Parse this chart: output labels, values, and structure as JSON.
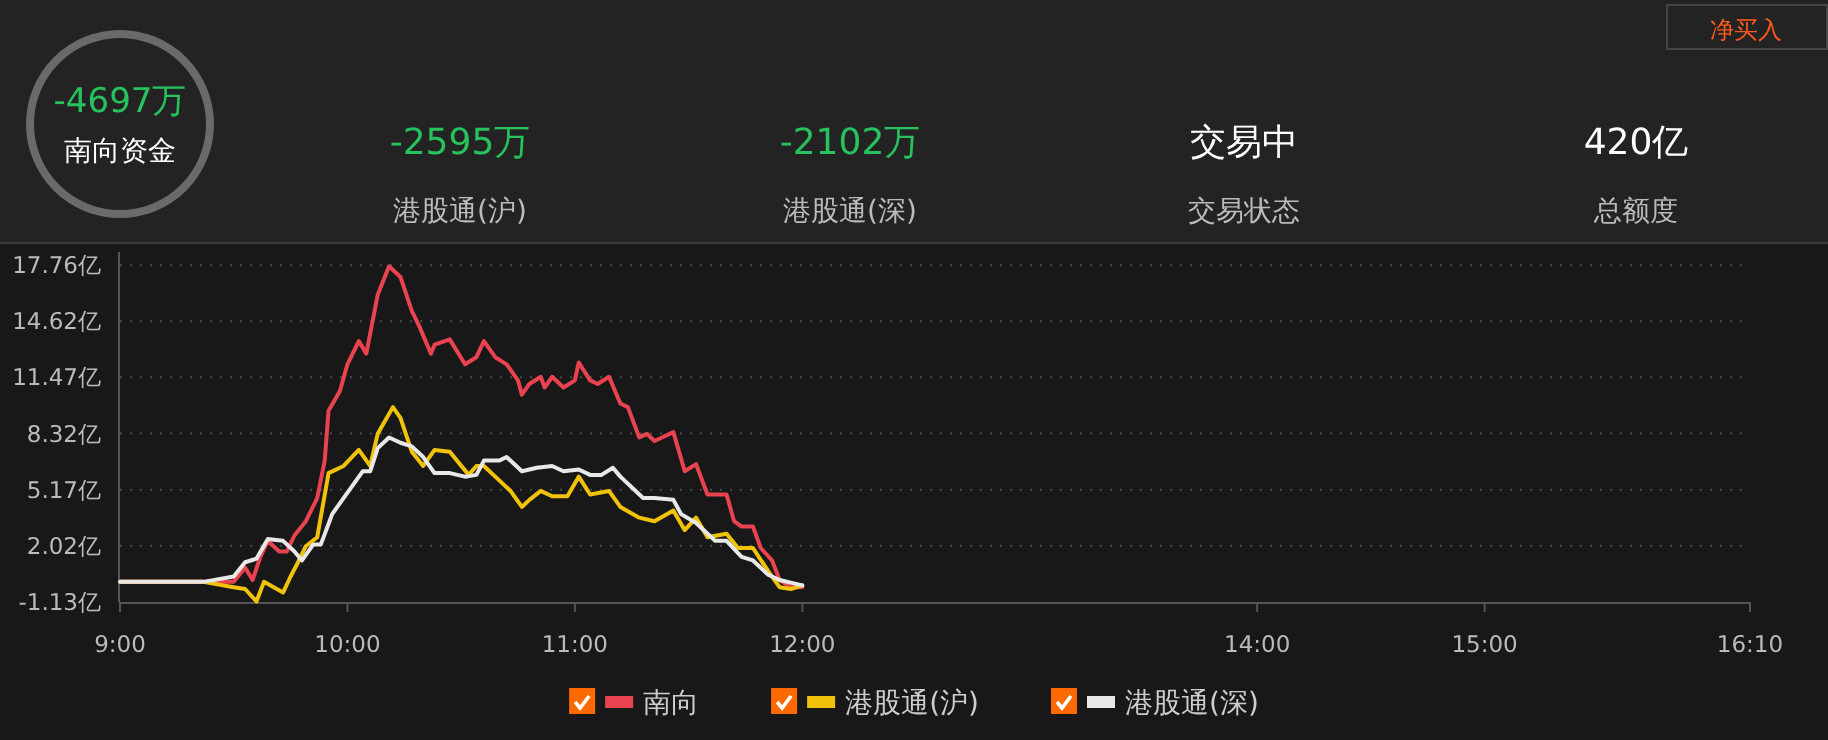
{
  "chart_data": {
    "type": "line",
    "title": "-4697万",
    "subtitle": "南向资金",
    "annotations": [
      "-2595万",
      "港股通(沪)",
      "-2102万",
      "港股通(深)",
      "交易中",
      "交易状态",
      "420亿",
      "总额度",
      "净买入"
    ],
    "xlim": [
      9,
      16.1667
    ],
    "xticks": [
      {
        "value": 9,
        "label": "9:00"
      },
      {
        "value": 10,
        "label": "10:00"
      },
      {
        "value": 11,
        "label": "11:00"
      },
      {
        "value": 12,
        "label": "12:00"
      },
      {
        "value": 14,
        "label": "14:00"
      },
      {
        "value": 15,
        "label": "15:00"
      },
      {
        "value": 16.1667,
        "label": "16:10"
      }
    ],
    "ylim": [
      -1.13,
      18.5
    ],
    "yticks": [
      {
        "value": -1.13,
        "label": "-1.13亿"
      },
      {
        "value": 2.02,
        "label": "2.02亿"
      },
      {
        "value": 5.17,
        "label": "5.17亿"
      },
      {
        "value": 8.32,
        "label": "8.32亿"
      },
      {
        "value": 11.47,
        "label": "11.47亿"
      },
      {
        "value": 14.62,
        "label": "14.62亿"
      },
      {
        "value": 17.76,
        "label": "17.76亿"
      }
    ],
    "grid": "y",
    "legend": "bottom",
    "series": [
      {
        "name": "南向",
        "color": "#e8434f",
        "x": [
          9,
          9.367,
          9.5,
          9.55,
          9.583,
          9.617,
          9.65,
          9.7,
          9.733,
          9.767,
          9.817,
          9.867,
          9.9,
          9.917,
          9.967,
          10,
          10.05,
          10.083,
          10.133,
          10.183,
          10.233,
          10.283,
          10.317,
          10.367,
          10.383,
          10.45,
          10.517,
          10.567,
          10.6,
          10.65,
          10.7,
          10.75,
          10.767,
          10.8,
          10.85,
          10.867,
          10.9,
          10.95,
          11,
          11.017,
          11.067,
          11.1,
          11.15,
          11.2,
          11.233,
          11.283,
          11.317,
          11.35,
          11.383,
          11.433,
          11.483,
          11.533,
          11.583,
          11.667,
          11.7,
          11.733,
          11.783,
          11.817,
          11.867,
          11.9,
          11.95,
          12
        ],
        "values": [
          0,
          0,
          0,
          0.8,
          0.1,
          1.4,
          2.3,
          1.7,
          1.7,
          2.6,
          3.4,
          4.7,
          6.8,
          9.6,
          10.7,
          12.2,
          13.5,
          12.8,
          16.1,
          17.7,
          17.1,
          15.2,
          14.3,
          12.8,
          13.3,
          13.6,
          12.2,
          12.6,
          13.5,
          12.6,
          12.2,
          11.3,
          10.5,
          11.1,
          11.5,
          10.9,
          11.5,
          10.9,
          11.3,
          12.3,
          11.3,
          11.1,
          11.5,
          10.0,
          9.8,
          8.1,
          8.3,
          7.9,
          8.1,
          8.4,
          6.2,
          6.6,
          4.9,
          4.9,
          3.4,
          3.1,
          3.1,
          1.9,
          1.2,
          0.1,
          -0.3,
          -0.3
        ]
      },
      {
        "name": "港股通(沪)",
        "color": "#f0c20a",
        "x": [
          9,
          9.367,
          9.5,
          9.55,
          9.6,
          9.633,
          9.717,
          9.75,
          9.783,
          9.817,
          9.867,
          9.917,
          9.983,
          10.05,
          10.1,
          10.133,
          10.2,
          10.233,
          10.283,
          10.333,
          10.383,
          10.45,
          10.533,
          10.567,
          10.6,
          10.65,
          10.717,
          10.767,
          10.8,
          10.85,
          10.9,
          10.967,
          11.017,
          11.067,
          11.15,
          11.2,
          11.283,
          11.35,
          11.433,
          11.483,
          11.533,
          11.583,
          11.667,
          11.717,
          11.783,
          11.85,
          11.9,
          11.95,
          12
        ],
        "values": [
          0,
          0,
          -0.3,
          -0.4,
          -1.1,
          0,
          -0.6,
          0.3,
          1.1,
          2.0,
          2.5,
          6.1,
          6.5,
          7.4,
          6.5,
          8.3,
          9.8,
          9.2,
          7.3,
          6.5,
          7.4,
          7.3,
          6.0,
          6.5,
          6.5,
          5.9,
          5.1,
          4.2,
          4.6,
          5.1,
          4.8,
          4.8,
          5.9,
          4.9,
          5.1,
          4.2,
          3.6,
          3.4,
          4.0,
          2.9,
          3.6,
          2.5,
          2.7,
          1.9,
          1.9,
          0.6,
          -0.3,
          -0.4,
          -0.2
        ]
      },
      {
        "name": "港股通(深)",
        "color": "#e8e8e8",
        "x": [
          9,
          9.367,
          9.5,
          9.55,
          9.6,
          9.65,
          9.717,
          9.767,
          9.8,
          9.85,
          9.883,
          9.933,
          9.983,
          10.067,
          10.1,
          10.133,
          10.183,
          10.233,
          10.283,
          10.333,
          10.383,
          10.45,
          10.517,
          10.567,
          10.6,
          10.667,
          10.7,
          10.767,
          10.833,
          10.9,
          10.95,
          11.017,
          11.067,
          11.117,
          11.167,
          11.2,
          11.3,
          11.35,
          11.433,
          11.467,
          11.533,
          11.617,
          11.667,
          11.733,
          11.783,
          11.85,
          11.9,
          11.967,
          12
        ],
        "values": [
          0,
          0,
          0.3,
          1.1,
          1.3,
          2.4,
          2.3,
          1.7,
          1.2,
          2.1,
          2.1,
          3.8,
          4.7,
          6.2,
          6.2,
          7.5,
          8.1,
          7.8,
          7.6,
          7.0,
          6.1,
          6.1,
          5.9,
          6.0,
          6.8,
          6.8,
          7.0,
          6.2,
          6.4,
          6.5,
          6.2,
          6.3,
          6.0,
          6.0,
          6.4,
          5.9,
          4.7,
          4.7,
          4.6,
          3.8,
          3.3,
          2.3,
          2.3,
          1.4,
          1.2,
          0.4,
          0.1,
          -0.1,
          -0.2
        ]
      }
    ]
  }
}
